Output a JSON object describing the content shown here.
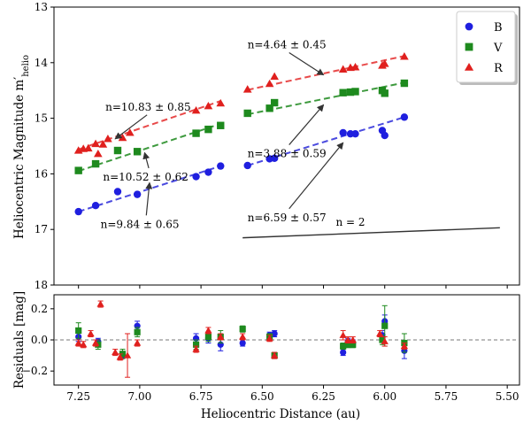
{
  "colors": {
    "B": "#1f1fdf",
    "V": "#1e8a1e",
    "R": "#e0201e",
    "fit_B": "#4a4adf",
    "fit_V": "#3e9a3e",
    "fit_R": "#e84a4a"
  },
  "chart_data": [
    {
      "type": "scatter",
      "xlabel": "",
      "ylabel": "Heliocentric Magnitude m′",
      "ylabel_sub": "helio",
      "xlim": [
        7.35,
        5.45
      ],
      "ylim": [
        18,
        13
      ],
      "y_inverted": true,
      "x_inverted": true,
      "xticks": [
        7.25,
        7.0,
        6.75,
        6.5,
        6.25,
        6.0,
        5.75,
        5.5
      ],
      "yticks": [
        13,
        14,
        15,
        16,
        17,
        18
      ],
      "legend": {
        "position": "top-right",
        "entries": [
          "B",
          "V",
          "R"
        ]
      },
      "series": [
        {
          "name": "B",
          "marker": "circle",
          "points": [
            [
              7.25,
              16.68
            ],
            [
              7.18,
              16.57
            ],
            [
              7.09,
              16.32
            ],
            [
              7.01,
              16.37
            ],
            [
              6.77,
              16.05
            ],
            [
              6.72,
              15.97
            ],
            [
              6.67,
              15.86
            ],
            [
              6.56,
              15.85
            ],
            [
              6.47,
              15.73
            ],
            [
              6.45,
              15.72
            ],
            [
              6.17,
              15.26
            ],
            [
              6.14,
              15.28
            ],
            [
              6.12,
              15.28
            ],
            [
              6.01,
              15.22
            ],
            [
              6.0,
              15.31
            ],
            [
              5.92,
              14.98
            ]
          ]
        },
        {
          "name": "V",
          "marker": "square",
          "points": [
            [
              7.25,
              15.94
            ],
            [
              7.18,
              15.82
            ],
            [
              7.09,
              15.58
            ],
            [
              7.01,
              15.6
            ],
            [
              6.77,
              15.27
            ],
            [
              6.72,
              15.2
            ],
            [
              6.67,
              15.13
            ],
            [
              6.56,
              14.91
            ],
            [
              6.47,
              14.82
            ],
            [
              6.45,
              14.72
            ],
            [
              6.17,
              14.54
            ],
            [
              6.14,
              14.53
            ],
            [
              6.12,
              14.52
            ],
            [
              6.01,
              14.5
            ],
            [
              6.0,
              14.55
            ],
            [
              5.92,
              14.37
            ]
          ]
        },
        {
          "name": "R",
          "marker": "triangle",
          "points": [
            [
              7.25,
              15.58
            ],
            [
              7.23,
              15.55
            ],
            [
              7.21,
              15.54
            ],
            [
              7.18,
              15.46
            ],
            [
              7.17,
              15.64
            ],
            [
              7.15,
              15.47
            ],
            [
              7.13,
              15.37
            ],
            [
              7.07,
              15.35
            ],
            [
              7.04,
              15.26
            ],
            [
              6.77,
              14.86
            ],
            [
              6.72,
              14.78
            ],
            [
              6.67,
              14.73
            ],
            [
              6.56,
              14.48
            ],
            [
              6.47,
              14.38
            ],
            [
              6.45,
              14.25
            ],
            [
              6.17,
              14.12
            ],
            [
              6.14,
              14.09
            ],
            [
              6.12,
              14.08
            ],
            [
              6.01,
              14.05
            ],
            [
              6.0,
              14.02
            ],
            [
              5.92,
              13.89
            ]
          ]
        }
      ],
      "fits": [
        {
          "series": "B",
          "x": [
            7.25,
            6.67
          ],
          "y": [
            16.68,
            15.86
          ]
        },
        {
          "series": "B",
          "x": [
            6.56,
            5.92
          ],
          "y": [
            15.85,
            14.98
          ]
        },
        {
          "series": "V",
          "x": [
            7.25,
            6.67
          ],
          "y": [
            15.95,
            15.1
          ]
        },
        {
          "series": "V",
          "x": [
            6.56,
            5.92
          ],
          "y": [
            14.93,
            14.36
          ]
        },
        {
          "series": "R",
          "x": [
            7.25,
            6.67
          ],
          "y": [
            15.56,
            14.69
          ]
        },
        {
          "series": "R",
          "x": [
            6.56,
            5.92
          ],
          "y": [
            14.49,
            13.88
          ]
        }
      ],
      "reference_line": {
        "label": "n = 2",
        "x": [
          6.58,
          5.53
        ],
        "y": [
          17.15,
          16.97
        ]
      },
      "annotations": [
        {
          "text": "n=10.83 ± 0.85",
          "series": "R",
          "tx": 7.14,
          "ty": 14.86,
          "ax": 7.1,
          "ay": 15.37
        },
        {
          "text": "n=10.52 ± 0.62",
          "series": "V",
          "tx": 7.15,
          "ty": 16.12,
          "ax": 6.98,
          "ay": 15.62
        },
        {
          "text": "n=9.84 ± 0.65",
          "series": "B",
          "tx": 7.16,
          "ty": 16.97,
          "ax": 6.96,
          "ay": 16.16
        },
        {
          "text": "n=4.64 ± 0.45",
          "series": "R",
          "tx": 6.56,
          "ty": 13.74,
          "ax": 6.25,
          "ay": 14.22
        },
        {
          "text": "n=3.88 ± 0.59",
          "series": "V",
          "tx": 6.56,
          "ty": 15.7,
          "ax": 6.25,
          "ay": 14.76
        },
        {
          "text": "n=6.59 ± 0.57",
          "series": "B",
          "tx": 6.56,
          "ty": 16.85,
          "ax": 6.17,
          "ay": 15.44
        }
      ]
    },
    {
      "type": "scatter",
      "xlabel": "Heliocentric Distance (au)",
      "ylabel": "Residuals [mag]",
      "xlim": [
        7.35,
        5.45
      ],
      "ylim": [
        -0.29,
        0.29
      ],
      "x_inverted": true,
      "xticks": [
        7.25,
        7.0,
        6.75,
        6.5,
        6.25,
        6.0,
        5.75,
        5.5
      ],
      "xtick_labels": [
        "7.25",
        "7.00",
        "6.75",
        "6.50",
        "6.25",
        "6.00",
        "5.75",
        "5.50"
      ],
      "yticks": [
        -0.2,
        0.0,
        0.2
      ],
      "ytick_labels": [
        "−0.2",
        "0.0",
        "0.2"
      ],
      "zero_line": 0,
      "series": [
        {
          "name": "B",
          "marker": "circle",
          "points": [
            [
              7.25,
              0.02,
              0.03
            ],
            [
              7.17,
              -0.01,
              0.02
            ],
            [
              7.07,
              -0.1,
              0.02
            ],
            [
              7.01,
              0.09,
              0.03
            ],
            [
              6.77,
              0.01,
              0.03
            ],
            [
              6.72,
              0.01,
              0.03
            ],
            [
              6.67,
              -0.03,
              0.04
            ],
            [
              6.58,
              -0.02,
              0.02
            ],
            [
              6.47,
              0.03,
              0.02
            ],
            [
              6.45,
              0.04,
              0.02
            ],
            [
              6.17,
              -0.08,
              0.02
            ],
            [
              6.15,
              -0.01,
              0.02
            ],
            [
              6.13,
              -0.02,
              0.02
            ],
            [
              6.01,
              0.03,
              0.03
            ],
            [
              6.0,
              0.12,
              0.04
            ],
            [
              5.92,
              -0.07,
              0.05
            ]
          ]
        },
        {
          "name": "V",
          "marker": "square",
          "points": [
            [
              7.25,
              0.06,
              0.05
            ],
            [
              7.17,
              -0.03,
              0.03
            ],
            [
              7.07,
              -0.09,
              0.03
            ],
            [
              7.01,
              0.05,
              0.03
            ],
            [
              6.77,
              -0.03,
              0.03
            ],
            [
              6.72,
              0.02,
              0.03
            ],
            [
              6.67,
              0.02,
              0.04
            ],
            [
              6.58,
              0.07,
              0.02
            ],
            [
              6.47,
              0.02,
              0.02
            ],
            [
              6.45,
              -0.1,
              0.02
            ],
            [
              6.17,
              -0.04,
              0.02
            ],
            [
              6.15,
              -0.03,
              0.02
            ],
            [
              6.13,
              -0.03,
              0.02
            ],
            [
              6.01,
              0.0,
              0.03
            ],
            [
              6.0,
              0.09,
              0.13
            ],
            [
              5.92,
              -0.02,
              0.06
            ]
          ]
        },
        {
          "name": "R",
          "marker": "triangle",
          "points": [
            [
              7.25,
              -0.02,
              0.02
            ],
            [
              7.23,
              -0.03,
              0.02
            ],
            [
              7.2,
              0.04,
              0.02
            ],
            [
              7.18,
              -0.02,
              0.02
            ],
            [
              7.16,
              0.23,
              0.02
            ],
            [
              7.1,
              -0.08,
              0.02
            ],
            [
              7.08,
              -0.11,
              0.02
            ],
            [
              7.05,
              -0.1,
              0.14
            ],
            [
              7.01,
              -0.02,
              0.02
            ],
            [
              6.77,
              -0.06,
              0.02
            ],
            [
              6.72,
              0.06,
              0.02
            ],
            [
              6.67,
              0.02,
              0.02
            ],
            [
              6.58,
              0.02,
              0.02
            ],
            [
              6.47,
              0.01,
              0.02
            ],
            [
              6.45,
              -0.1,
              0.02
            ],
            [
              6.17,
              0.03,
              0.03
            ],
            [
              6.15,
              0.0,
              0.02
            ],
            [
              6.13,
              0.0,
              0.02
            ],
            [
              6.02,
              0.04,
              0.02
            ],
            [
              6.0,
              -0.01,
              0.03
            ],
            [
              5.92,
              -0.04,
              0.02
            ]
          ]
        }
      ]
    }
  ]
}
